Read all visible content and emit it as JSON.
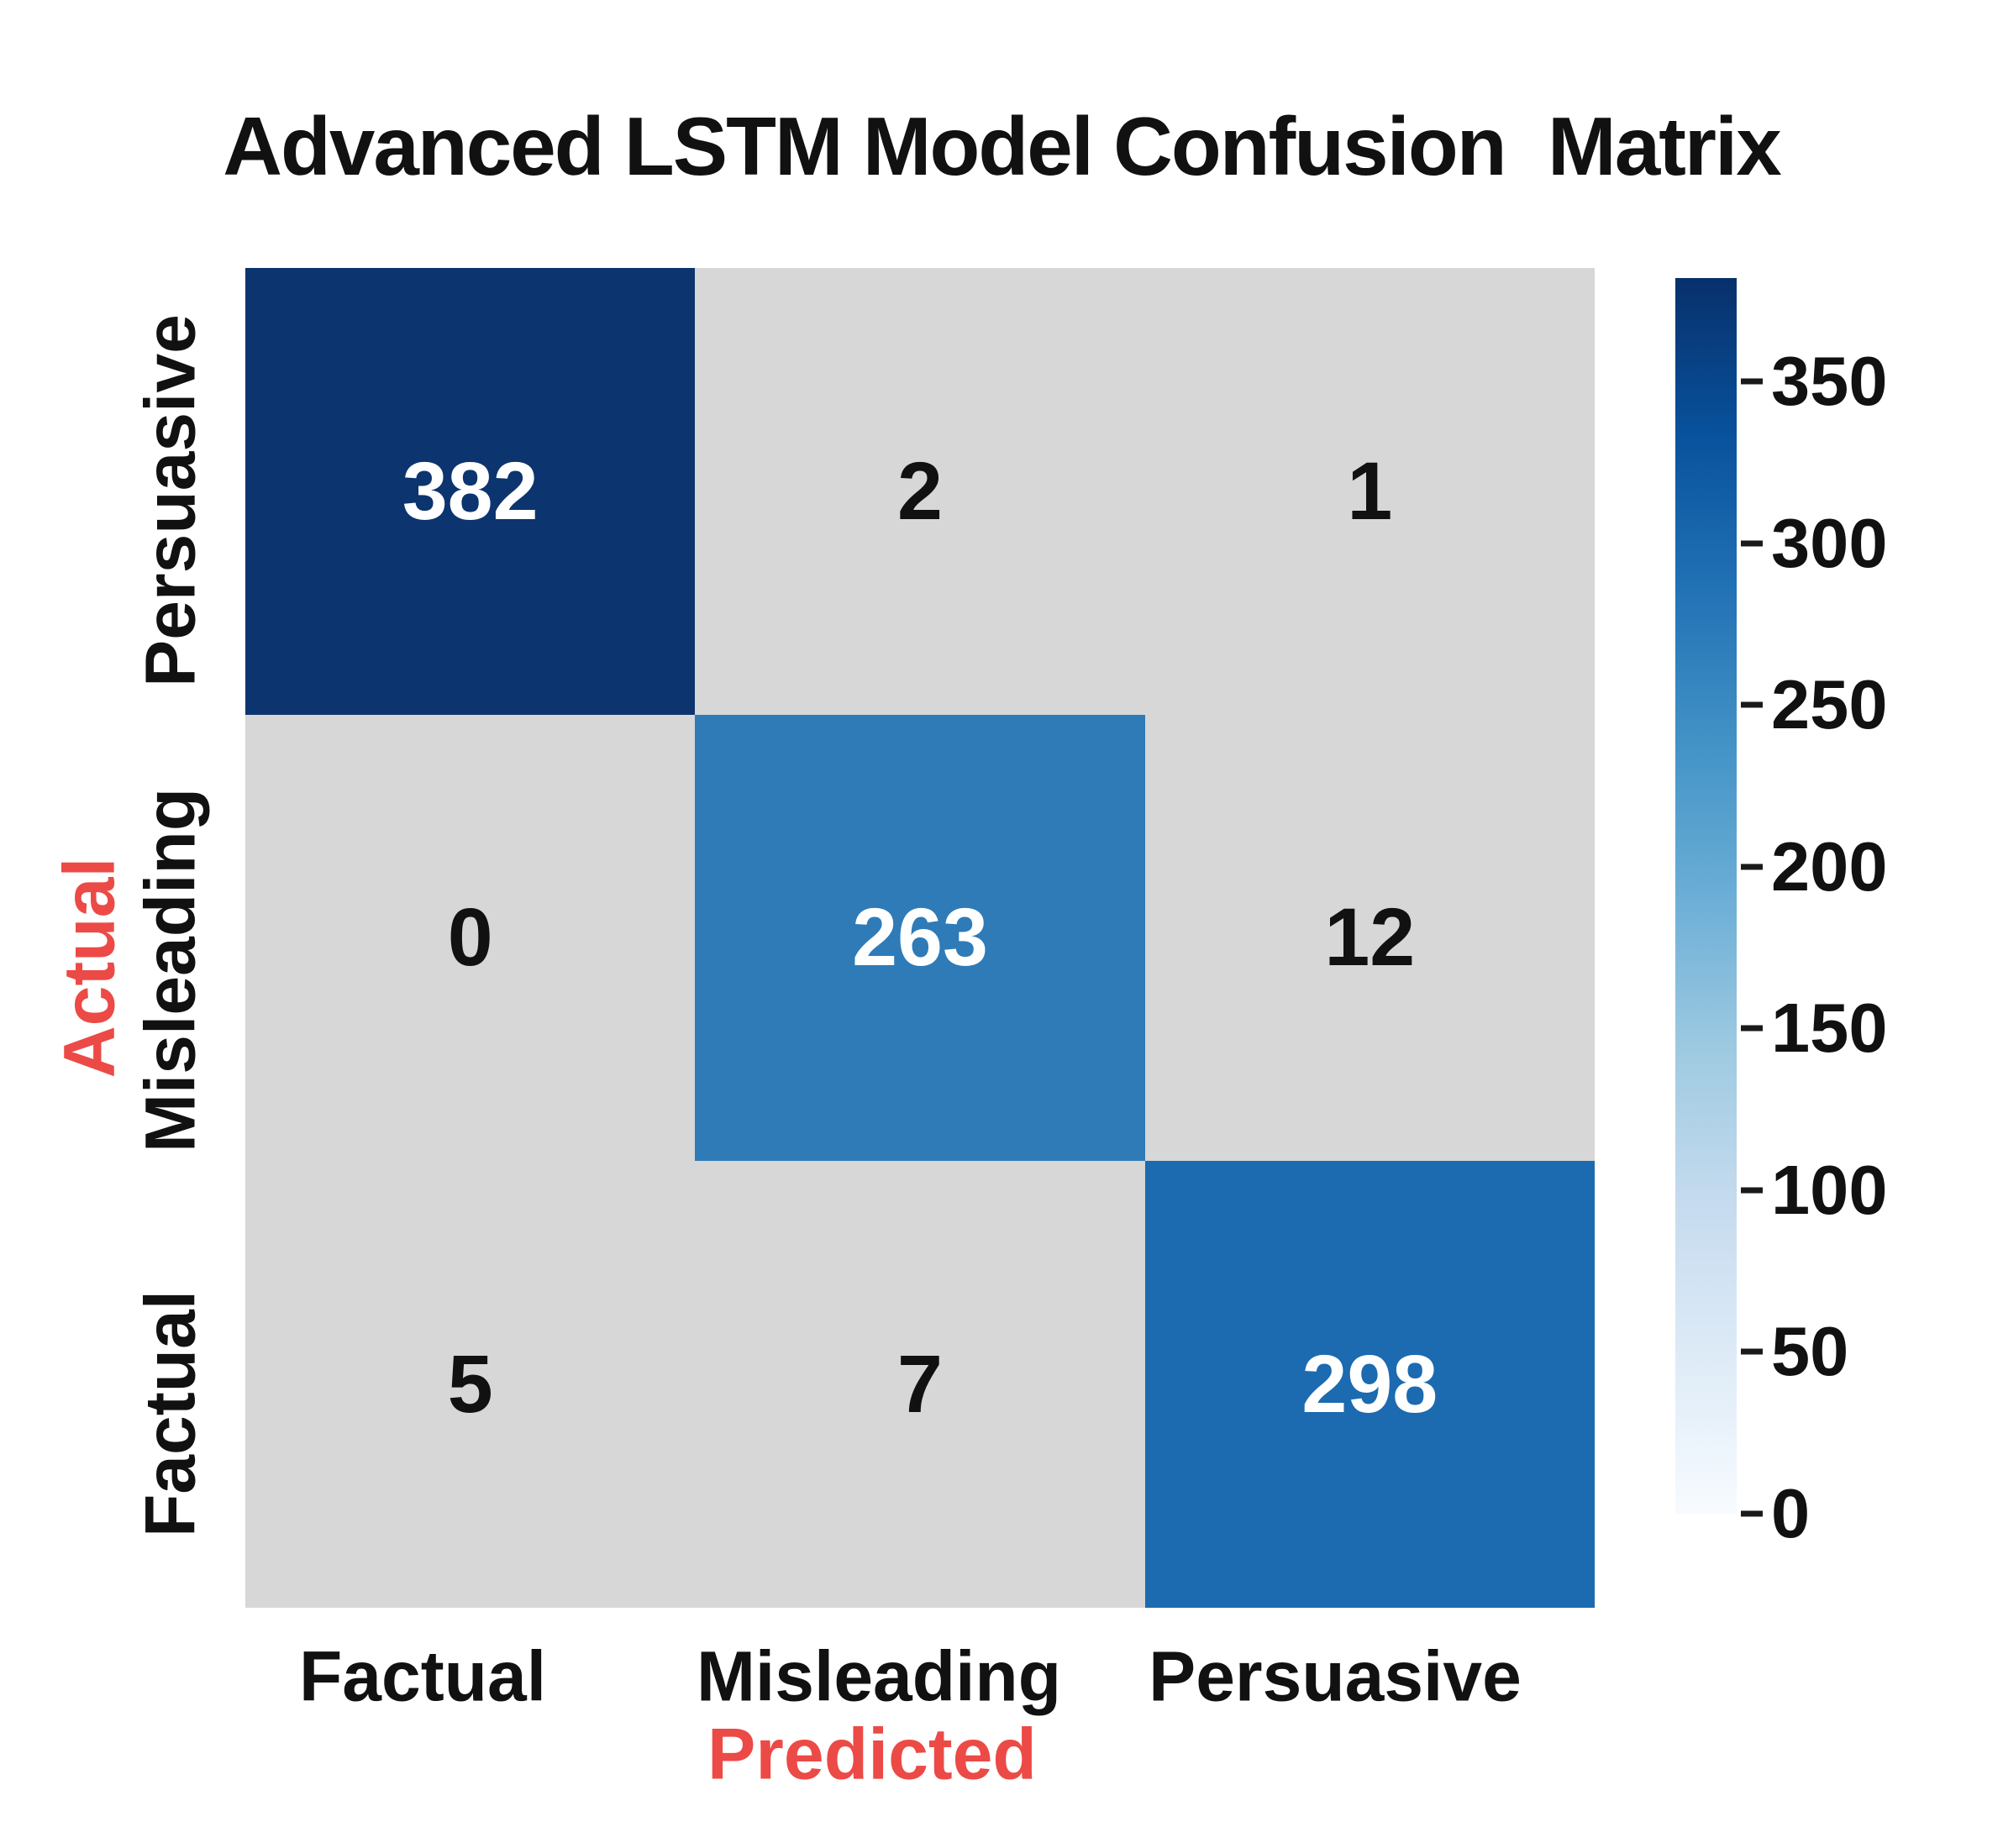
{
  "title": "Advanced LSTM Model Confusion  Matrix",
  "colors": {
    "background": "#ffffff",
    "text": "#111111",
    "axis_title_red": "#ec4a46",
    "cell_gray": "#d7d7d7",
    "diag_dark_navy": "#0c346f",
    "diag_mid_blue": "#2e7bb8",
    "diag_blue": "#1c6ab0",
    "cell_text_light": "#ffffff",
    "cell_text_dark": "#111111"
  },
  "chart_data": {
    "type": "heatmap",
    "title": "Advanced LSTM Model Confusion  Matrix",
    "xlabel": "Predicted",
    "ylabel": "Actual",
    "x_categories": [
      "Factual",
      "Misleading",
      "Persuasive"
    ],
    "y_categories": [
      "Persuasive",
      "Misleading",
      "Factual"
    ],
    "matrix": [
      [
        382,
        2,
        1
      ],
      [
        0,
        263,
        12
      ],
      [
        5,
        7,
        298
      ]
    ],
    "cell_bg": [
      [
        "#0c346f",
        "#d7d7d7",
        "#d7d7d7"
      ],
      [
        "#d7d7d7",
        "#2e7bb8",
        "#d7d7d7"
      ],
      [
        "#d7d7d7",
        "#d7d7d7",
        "#1c6ab0"
      ]
    ],
    "cell_fg": [
      [
        "#ffffff",
        "#111111",
        "#111111"
      ],
      [
        "#111111",
        "#ffffff",
        "#111111"
      ],
      [
        "#111111",
        "#111111",
        "#ffffff"
      ]
    ],
    "grid": false,
    "legend": "none",
    "colorbar": {
      "position": "right",
      "vmin": 0,
      "vmax": 382,
      "ticks": [
        350,
        300,
        250,
        200,
        150,
        100,
        50,
        0
      ],
      "colormap": "Blues",
      "gradient_stops_top_to_bottom": [
        "#08306b",
        "#08519c",
        "#2171b5",
        "#4292c6",
        "#6baed6",
        "#9ecae1",
        "#c6dbef",
        "#deebf7",
        "#f7fbff"
      ]
    }
  }
}
